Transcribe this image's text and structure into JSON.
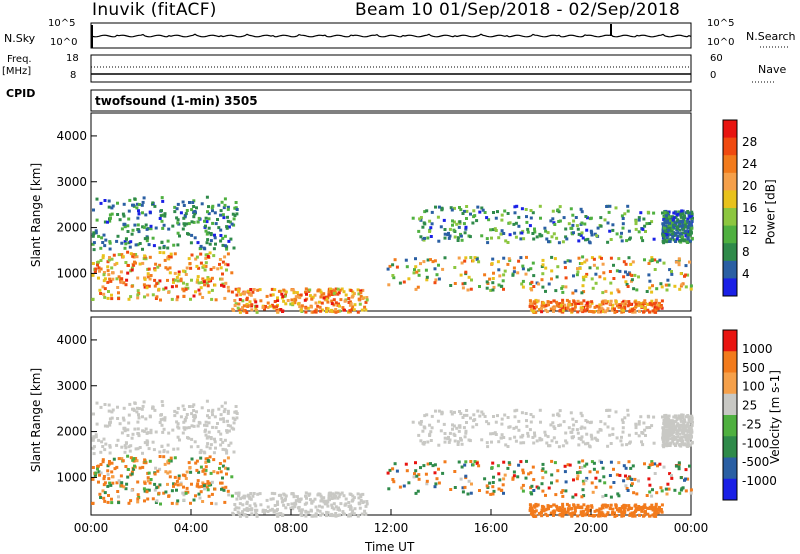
{
  "header": {
    "radar_title": "Inuvik (fitACF)",
    "beam_and_dates": "Beam 10  01/Sep/2018 - 02/Sep/2018"
  },
  "param_panels": {
    "nsky_label": "N.Sky",
    "nsearch_label": "N.Search",
    "noise_ticks_left": [
      "10^5",
      "10^0"
    ],
    "noise_ticks_right": [
      "10^5",
      "10^0"
    ],
    "freq_label": "Freq.",
    "freq_unit": "[MHz]",
    "freq_ticks": [
      "18",
      "8"
    ],
    "nave_label": "Nave",
    "nave_ticks": [
      "60",
      "0"
    ],
    "cpid_label": "CPID",
    "cpid_value": "twofsound (1-min) 3505"
  },
  "time_axis": {
    "label": "Time UT",
    "ticks": [
      "00:00",
      "04:00",
      "08:00",
      "12:00",
      "16:00",
      "20:00",
      "00:00"
    ]
  },
  "colors": {
    "noise_line": "#000000",
    "ground_scatter": "#c8c8c4"
  },
  "chart_data": [
    {
      "type": "heatmap",
      "panel": "power",
      "ylabel": "Slant Range [km]",
      "yticks": [
        "1000",
        "2000",
        "3000",
        "4000"
      ],
      "ylim": [
        180,
        4500
      ],
      "xlim_hours": [
        0,
        24
      ],
      "colorbar_label": "Power [dB]",
      "colorbar_ticks": [
        "4",
        "8",
        "12",
        "16",
        "20",
        "24",
        "28"
      ],
      "colorbar_colors": [
        "#1a20e6",
        "#2a5fa3",
        "#2f8a4a",
        "#4fb040",
        "#8cc63f",
        "#e8c21c",
        "#f5a04a",
        "#f27b1c",
        "#f04a10",
        "#e81410"
      ],
      "scatter_regions": [
        {
          "t0": 0.0,
          "t1": 5.8,
          "r0": 1550,
          "r1": 2700,
          "level": [
            4,
            14
          ]
        },
        {
          "t0": 0.0,
          "t1": 5.6,
          "r0": 450,
          "r1": 1500,
          "level": [
            14,
            30
          ]
        },
        {
          "t0": 5.6,
          "t1": 11.0,
          "r0": 180,
          "r1": 700,
          "level": [
            16,
            30
          ]
        },
        {
          "t0": 11.8,
          "t1": 24.0,
          "r0": 600,
          "r1": 1400,
          "level": [
            6,
            28
          ]
        },
        {
          "t0": 12.8,
          "t1": 22.5,
          "r0": 1700,
          "r1": 2500,
          "level": [
            4,
            16
          ]
        },
        {
          "t0": 17.5,
          "t1": 22.8,
          "r0": 180,
          "r1": 450,
          "level": [
            18,
            30
          ]
        },
        {
          "t0": 22.8,
          "t1": 24.0,
          "r0": 1700,
          "r1": 2400,
          "level": [
            4,
            12
          ]
        }
      ]
    },
    {
      "type": "heatmap",
      "panel": "velocity",
      "ylabel": "Slant Range [km]",
      "yticks": [
        "1000",
        "2000",
        "3000",
        "4000"
      ],
      "ylim": [
        180,
        4500
      ],
      "xlim_hours": [
        0,
        24
      ],
      "colorbar_label": "Velocity [m s-1]",
      "colorbar_ticks": [
        "1000",
        "500",
        "100",
        "25",
        "-25",
        "-100",
        "-500",
        "-1000"
      ],
      "colorbar_colors": [
        "#1a20e6",
        "#2a5fa3",
        "#2f8a4a",
        "#4fb040",
        "#c8c8c4",
        "#f5a04a",
        "#f27b1c",
        "#e81410"
      ],
      "scatter_regions": [
        {
          "t0": 0.0,
          "t1": 5.8,
          "r0": 1550,
          "r1": 2700,
          "level": [
            0,
            0
          ]
        },
        {
          "t0": 0.0,
          "t1": 5.6,
          "r0": 450,
          "r1": 1500,
          "level": [
            -400,
            200
          ]
        },
        {
          "t0": 5.6,
          "t1": 11.0,
          "r0": 180,
          "r1": 700,
          "level": [
            0,
            0
          ]
        },
        {
          "t0": 11.8,
          "t1": 24.0,
          "r0": 600,
          "r1": 1400,
          "level": [
            -600,
            600
          ]
        },
        {
          "t0": 12.8,
          "t1": 22.5,
          "r0": 1700,
          "r1": 2500,
          "level": [
            0,
            0
          ]
        },
        {
          "t0": 17.5,
          "t1": 22.8,
          "r0": 180,
          "r1": 450,
          "level": [
            -500,
            -100
          ]
        },
        {
          "t0": 22.8,
          "t1": 24.0,
          "r0": 1700,
          "r1": 2400,
          "level": [
            0,
            0
          ]
        }
      ]
    }
  ]
}
